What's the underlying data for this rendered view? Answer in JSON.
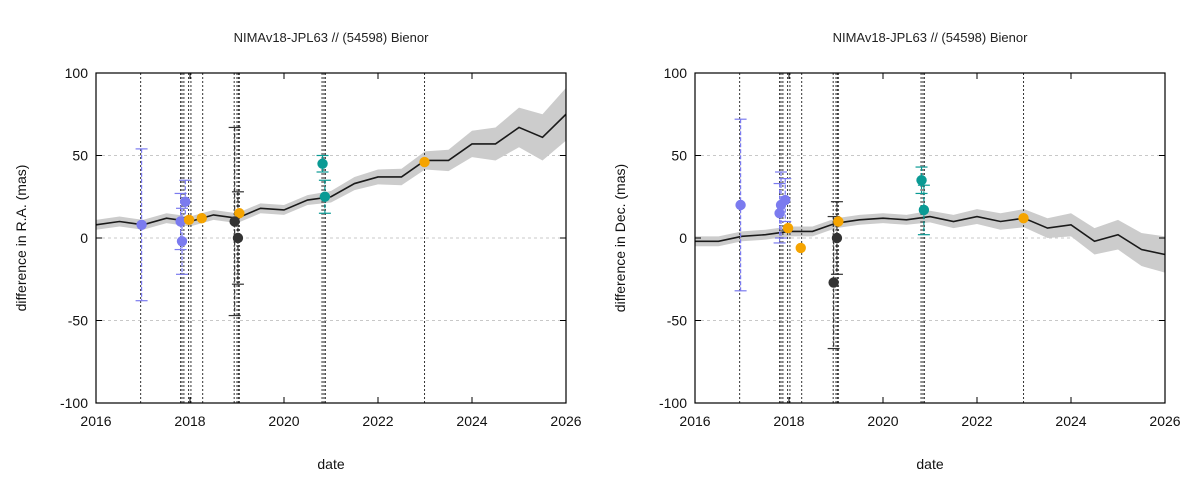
{
  "chart_data": [
    {
      "type": "line",
      "title": "NIMAv18-JPL63 // (54598) Bienor",
      "xlabel": "date",
      "ylabel": "difference in R.A. (mas)",
      "xlim": [
        2016,
        2026
      ],
      "ylim": [
        -100,
        100
      ],
      "x_ticks": [
        "2016",
        "2018",
        "2020",
        "2022",
        "2024",
        "2026"
      ],
      "y_ticks": [
        "100",
        "50",
        "0",
        "-50",
        "-100"
      ],
      "grid": "horizontal dashed",
      "vlines": [
        2016.95,
        2017.8,
        2017.83,
        2017.87,
        2017.97,
        2018.02,
        2018.27,
        2018.94,
        2019.0,
        2019.03,
        2019.05,
        2020.81,
        2020.85,
        2020.88,
        2022.99
      ],
      "ephemeris_curve": {
        "x": [
          2016,
          2016.5,
          2017,
          2017.5,
          2018,
          2018.5,
          2019,
          2019.5,
          2020,
          2020.5,
          2021,
          2021.5,
          2022,
          2022.5,
          2023,
          2023.5,
          2024,
          2024.5,
          2025,
          2025.5,
          2026
        ],
        "y": [
          8,
          10,
          8,
          12,
          10,
          14,
          12,
          18,
          17,
          23,
          25,
          33,
          37,
          37,
          47,
          47,
          57,
          57,
          67,
          61,
          75
        ],
        "band": [
          3,
          3,
          3,
          3,
          3,
          3,
          3,
          3,
          3,
          3,
          3.5,
          4,
          4.5,
          5,
          5.5,
          6.5,
          8,
          10,
          12,
          14,
          16
        ]
      },
      "series": [
        {
          "color": "#7b7bef",
          "points": [
            {
              "x": 2016.97,
              "y": 8,
              "err": 46
            },
            {
              "x": 2017.8,
              "y": 10,
              "err": 17
            },
            {
              "x": 2017.83,
              "y": -2,
              "err": 20
            },
            {
              "x": 2017.9,
              "y": 22,
              "err": 13
            }
          ]
        },
        {
          "color": "#f5a400",
          "points": [
            {
              "x": 2017.98,
              "y": 11,
              "err": 0
            },
            {
              "x": 2018.25,
              "y": 12,
              "err": 0
            },
            {
              "x": 2019.05,
              "y": 15,
              "err": 0
            },
            {
              "x": 2022.99,
              "y": 46,
              "err": 0
            }
          ]
        },
        {
          "color": "#333333",
          "points": [
            {
              "x": 2018.95,
              "y": 10,
              "err": 57
            },
            {
              "x": 2019.02,
              "y": 0,
              "err": 28
            }
          ]
        },
        {
          "color": "#0a9a94",
          "points": [
            {
              "x": 2020.82,
              "y": 45,
              "err": 5
            },
            {
              "x": 2020.87,
              "y": 25,
              "err": 10
            }
          ]
        }
      ]
    },
    {
      "type": "line",
      "title": "NIMAv18-JPL63 // (54598) Bienor",
      "xlabel": "date",
      "ylabel": "difference in Dec. (mas)",
      "xlim": [
        2016,
        2026
      ],
      "ylim": [
        -100,
        100
      ],
      "x_ticks": [
        "2016",
        "2018",
        "2020",
        "2022",
        "2024",
        "2026"
      ],
      "y_ticks": [
        "100",
        "50",
        "0",
        "-50",
        "-100"
      ],
      "grid": "horizontal dashed",
      "vlines": [
        2016.95,
        2017.8,
        2017.83,
        2017.87,
        2017.97,
        2018.02,
        2018.27,
        2018.94,
        2019.0,
        2019.03,
        2019.05,
        2020.81,
        2020.85,
        2020.88,
        2022.99
      ],
      "ephemeris_curve": {
        "x": [
          2016,
          2016.5,
          2017,
          2017.5,
          2018,
          2018.5,
          2019,
          2019.5,
          2020,
          2020.5,
          2021,
          2021.5,
          2022,
          2022.5,
          2023,
          2023.5,
          2024,
          2024.5,
          2025,
          2025.5,
          2026
        ],
        "y": [
          -2,
          -2,
          1,
          2,
          4,
          4,
          9,
          11,
          12,
          11,
          13,
          10,
          13,
          10,
          12,
          6,
          8,
          -2,
          2,
          -7,
          -10
        ],
        "band": [
          3,
          3,
          3,
          3,
          3,
          3,
          3,
          3,
          3,
          3,
          3.5,
          4,
          4.5,
          5,
          5.5,
          6,
          7,
          8,
          9,
          10,
          11
        ]
      },
      "series": [
        {
          "color": "#7b7bef",
          "points": [
            {
              "x": 2016.97,
              "y": 20,
              "err": 52
            },
            {
              "x": 2017.8,
              "y": 15,
              "err": 18
            },
            {
              "x": 2017.83,
              "y": 20,
              "err": 20
            },
            {
              "x": 2017.92,
              "y": 23,
              "err": 13
            }
          ]
        },
        {
          "color": "#f5a400",
          "points": [
            {
              "x": 2017.98,
              "y": 6,
              "err": 0
            },
            {
              "x": 2018.25,
              "y": -6,
              "err": 0
            },
            {
              "x": 2019.05,
              "y": 10,
              "err": 0
            },
            {
              "x": 2022.99,
              "y": 12,
              "err": 0
            }
          ]
        },
        {
          "color": "#333333",
          "points": [
            {
              "x": 2018.95,
              "y": -27,
              "err": 40
            },
            {
              "x": 2019.02,
              "y": 0,
              "err": 22
            }
          ]
        },
        {
          "color": "#0a9a94",
          "points": [
            {
              "x": 2020.82,
              "y": 35,
              "err": 8
            },
            {
              "x": 2020.87,
              "y": 17,
              "err": 15
            }
          ]
        }
      ]
    }
  ]
}
